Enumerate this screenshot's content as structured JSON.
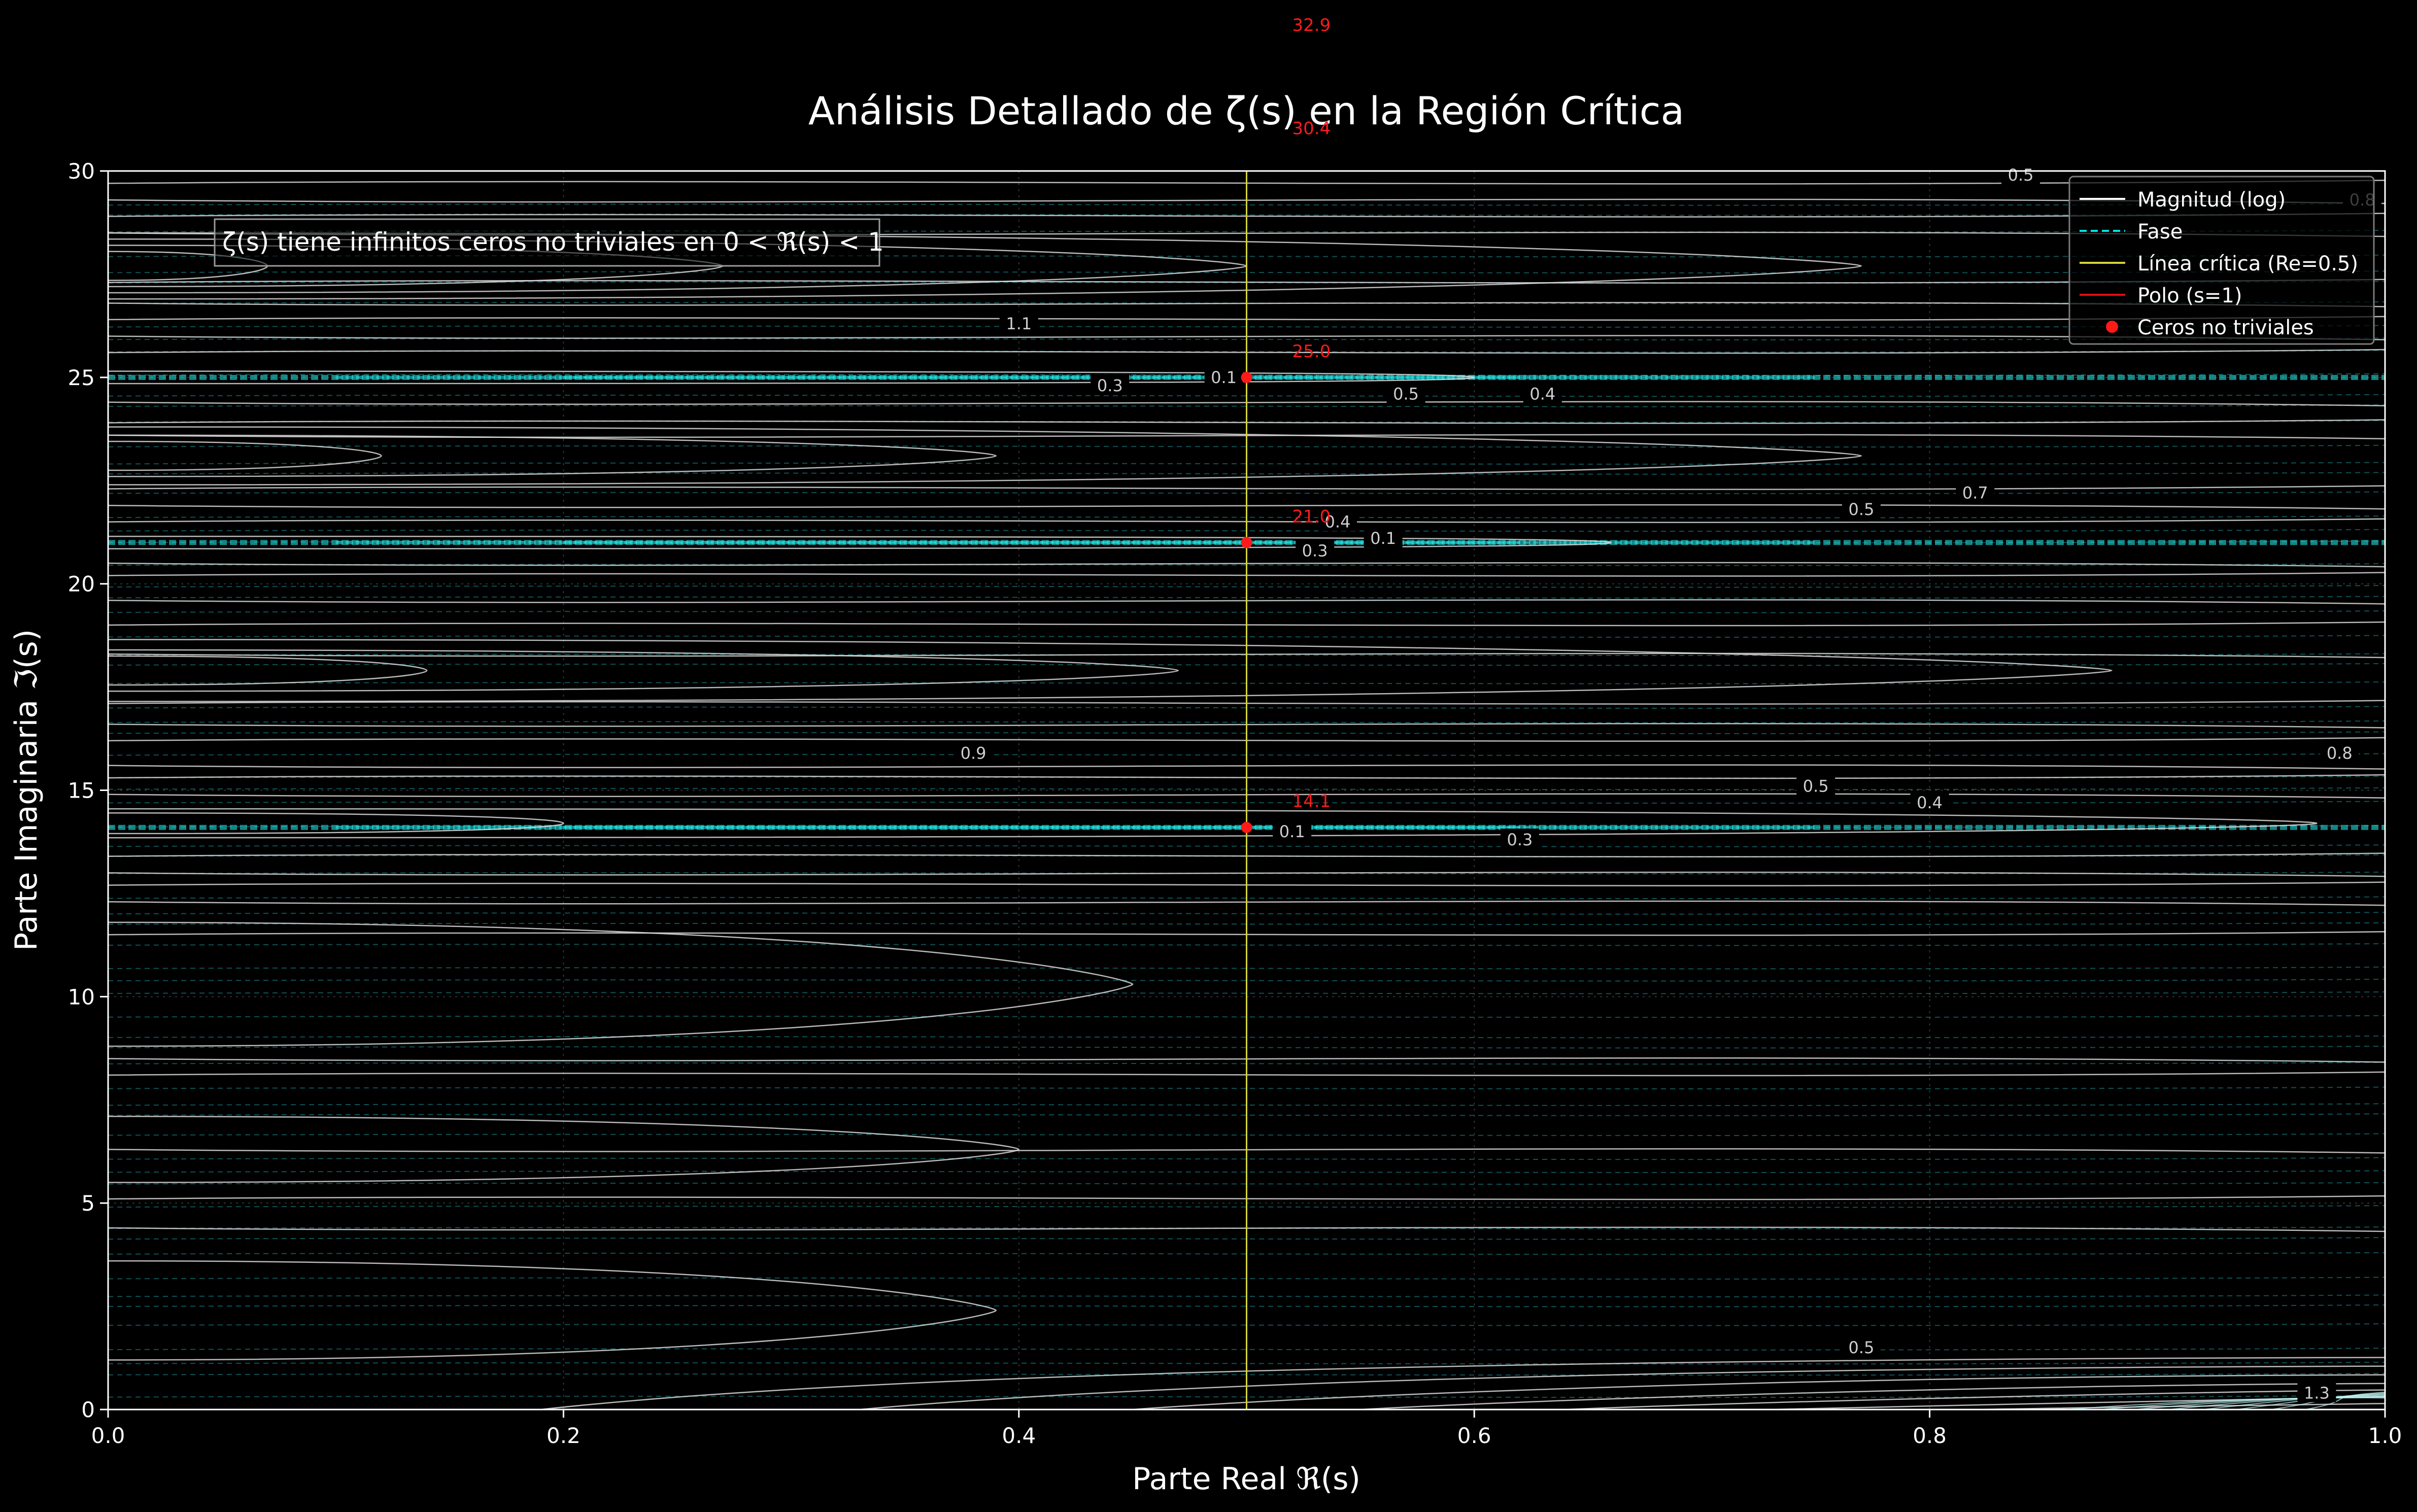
{
  "chart_data": {
    "type": "contour",
    "title": "Análisis Detallado de ζ(s) en la Región Crítica",
    "xlabel": "Parte Real ℜ(s)",
    "ylabel": "Parte Imaginaria ℑ(s)",
    "xlim": [
      0.0,
      1.0
    ],
    "ylim": [
      0,
      30
    ],
    "xticks": [
      0.0,
      0.2,
      0.4,
      0.6,
      0.8,
      1.0
    ],
    "xtick_labels": [
      "0.0",
      "0.2",
      "0.4",
      "0.6",
      "0.8",
      "1.0"
    ],
    "yticks": [
      0,
      5,
      10,
      15,
      20,
      25,
      30
    ],
    "ytick_labels": [
      "0",
      "5",
      "10",
      "15",
      "20",
      "25",
      "30"
    ],
    "grid": true,
    "legend_position": "top-right",
    "legend": [
      {
        "label": "Magnitud (log)",
        "style": "line",
        "color": "#ffffff"
      },
      {
        "label": "Fase",
        "style": "dashed",
        "color": "#00e5e5"
      },
      {
        "label": "Línea crítica (Re=0.5)",
        "style": "line",
        "color": "#d4d43a"
      },
      {
        "label": "Polo (s=1)",
        "style": "line",
        "color": "#e01010"
      },
      {
        "label": "Ceros no triviales",
        "style": "dot",
        "color": "#ff1a1a"
      }
    ],
    "annotation": "ζ(s) tiene infinitos ceros no triviales en 0 < ℜ(s) < 1",
    "critical_line_x": 0.5,
    "zeros": [
      {
        "x": 0.5,
        "y": 14.1,
        "label": "14.1"
      },
      {
        "x": 0.5,
        "y": 21.0,
        "label": "21.0"
      },
      {
        "x": 0.5,
        "y": 25.0,
        "label": "25.0"
      }
    ],
    "zero_labels_out_of_range": [
      {
        "x": 0.5,
        "y": 30.4,
        "label": "30.4"
      },
      {
        "x": 0.5,
        "y": 32.9,
        "label": "32.9"
      }
    ],
    "zero_label_color": "#ff1a1a",
    "contour_labels": [
      {
        "x": 0.57,
        "y": 24.6,
        "label": "0.5"
      },
      {
        "x": 0.63,
        "y": 24.6,
        "label": "0.4"
      },
      {
        "x": 0.44,
        "y": 24.8,
        "label": "0.3"
      },
      {
        "x": 0.49,
        "y": 25.0,
        "label": "0.1"
      },
      {
        "x": 0.4,
        "y": 26.3,
        "label": "1.1"
      },
      {
        "x": 0.77,
        "y": 21.8,
        "label": "0.5"
      },
      {
        "x": 0.82,
        "y": 22.2,
        "label": "0.7"
      },
      {
        "x": 0.54,
        "y": 21.5,
        "label": "0.4"
      },
      {
        "x": 0.56,
        "y": 21.1,
        "label": "0.1"
      },
      {
        "x": 0.53,
        "y": 20.8,
        "label": "0.3"
      },
      {
        "x": 0.38,
        "y": 15.9,
        "label": "0.9"
      },
      {
        "x": 0.75,
        "y": 15.1,
        "label": "0.5"
      },
      {
        "x": 0.8,
        "y": 14.7,
        "label": "0.4"
      },
      {
        "x": 0.52,
        "y": 14.0,
        "label": "0.1"
      },
      {
        "x": 0.62,
        "y": 13.8,
        "label": "0.3"
      },
      {
        "x": 0.98,
        "y": 15.9,
        "label": "0.8"
      },
      {
        "x": 0.77,
        "y": 1.5,
        "label": "0.5"
      },
      {
        "x": 0.97,
        "y": 0.4,
        "label": "1.3"
      },
      {
        "x": 0.84,
        "y": 29.9,
        "label": "0.5"
      },
      {
        "x": 0.99,
        "y": 29.3,
        "label": "0.8"
      }
    ],
    "colors": {
      "background": "#000000",
      "magnitude_contours": "#d9d9d9",
      "phase_contours": "#00e5e5",
      "critical_line": "#d4d43a",
      "axes": "#ffffff"
    }
  }
}
